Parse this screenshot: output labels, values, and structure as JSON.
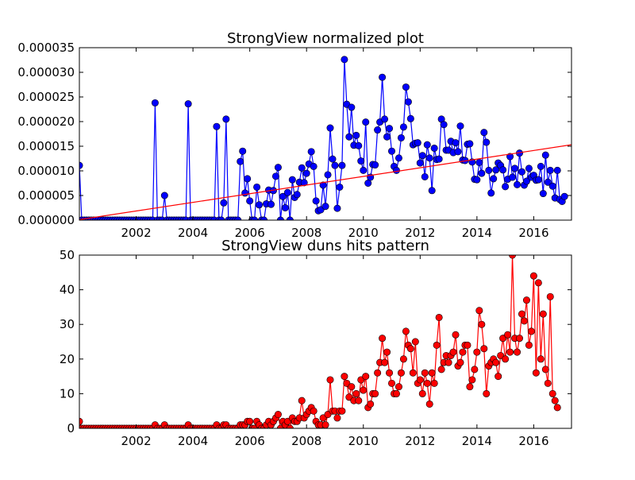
{
  "figure": {
    "background": "#ffffff"
  },
  "chart_data": [
    {
      "type": "line",
      "title": "StrongView normalized plot",
      "xlabel": "",
      "ylabel": "",
      "xlim": [
        2000.0,
        2017.33
      ],
      "ylim": [
        0,
        3.5e-05
      ],
      "xticks": [
        2002,
        2004,
        2006,
        2008,
        2010,
        2012,
        2014,
        2016
      ],
      "yticks": [
        {
          "value": 0,
          "label": "0.000000"
        },
        {
          "value": 5e-06,
          "label": "0.000005"
        },
        {
          "value": 1e-05,
          "label": "0.000010"
        },
        {
          "value": 1.5e-05,
          "label": "0.000015"
        },
        {
          "value": 2e-05,
          "label": "0.000020"
        },
        {
          "value": 2.5e-05,
          "label": "0.000025"
        },
        {
          "value": 3e-05,
          "label": "0.000030"
        },
        {
          "value": 3.5e-05,
          "label": "0.000035"
        }
      ],
      "grid": false,
      "series": [
        {
          "color": "#0000ff",
          "marker": "circle",
          "x_start": 2000.0,
          "x_step": 0.08333,
          "values": [
            1.11e-05,
            0,
            0,
            0,
            0,
            0,
            0,
            0,
            0,
            0,
            0,
            0,
            0,
            0,
            0,
            0,
            0,
            0,
            0,
            0,
            0,
            0,
            0,
            0,
            0,
            0,
            0,
            0,
            0,
            0,
            0,
            0,
            2.38e-05,
            0,
            0,
            0,
            5e-06,
            0,
            0,
            0,
            0,
            0,
            0,
            0,
            0,
            0,
            2.36e-05,
            0,
            0,
            0,
            0,
            0,
            0,
            0,
            0,
            0,
            0,
            0,
            1.9e-05,
            0,
            0,
            3.5e-06,
            2.05e-05,
            0,
            0,
            0,
            0,
            0,
            1.19e-05,
            1.4e-05,
            5.5e-06,
            8.4e-06,
            3.9e-06,
            0,
            0,
            6.7e-06,
            3.1e-06,
            0,
            0,
            3.3e-06,
            6.1e-06,
            3.2e-06,
            6e-06,
            8.9e-06,
            1.07e-05,
            0,
            4.8e-06,
            2.5e-06,
            5.6e-06,
            0,
            8.2e-06,
            4.6e-06,
            5.2e-06,
            7.7e-06,
            1.06e-05,
            7.6e-06,
            9.5e-06,
            1.14e-05,
            1.39e-05,
            1.09e-05,
            3.9e-06,
            1.9e-06,
            2.1e-06,
            7.1e-06,
            2.8e-06,
            9.2e-06,
            1.87e-05,
            1.24e-05,
            1.11e-05,
            2.4e-06,
            6.7e-06,
            1.11e-05,
            3.26e-05,
            2.35e-05,
            1.69e-05,
            2.29e-05,
            1.52e-05,
            1.72e-05,
            1.51e-05,
            1.2e-05,
            1.01e-05,
            1.99e-05,
            7.5e-06,
            8.7e-06,
            1.13e-05,
            1.12e-05,
            1.83e-05,
            1.99e-05,
            2.9e-05,
            2.05e-05,
            1.69e-05,
            1.86e-05,
            1.4e-05,
            1.09e-05,
            1.01e-05,
            1.26e-05,
            1.67e-05,
            1.89e-05,
            2.7e-05,
            2.4e-05,
            2.06e-05,
            1.53e-05,
            1.56e-05,
            1.57e-05,
            1.16e-05,
            1.31e-05,
            8.8e-06,
            1.53e-05,
            1.26e-05,
            6e-06,
            1.46e-05,
            1.23e-05,
            1.24e-05,
            2.05e-05,
            1.94e-05,
            1.42e-05,
            1.42e-05,
            1.6e-05,
            1.37e-05,
            1.57e-05,
            1.39e-05,
            1.91e-05,
            1.22e-05,
            1.21e-05,
            1.54e-05,
            1.55e-05,
            1.18e-05,
            8.3e-06,
            8.2e-06,
            1.17e-05,
            9.5e-06,
            1.78e-05,
            1.58e-05,
            1.01e-05,
            5.5e-06,
            8.4e-06,
            1.02e-05,
            1.16e-05,
            1.11e-05,
            1.02e-05,
            6.8e-06,
            8.3e-06,
            1.29e-05,
            8.7e-06,
            1.05e-05,
            7.2e-06,
            1.36e-05,
            9.8e-06,
            7.1e-06,
            7.9e-06,
            1.05e-05,
            8.7e-06,
            9.1e-06,
            8.1e-06,
            8.2e-06,
            1.09e-05,
            5.4e-06,
            1.32e-05,
            7.7e-06,
            1.01e-05,
            6.9e-06,
            4.5e-06,
            1.01e-05,
            4.2e-06,
            3.8e-06,
            4.8e-06
          ]
        },
        {
          "color": "#ff0000",
          "marker": "none",
          "x": [
            2000.0,
            2017.33
          ],
          "values": [
            1e-07,
            1.53e-05
          ]
        }
      ]
    },
    {
      "type": "line",
      "title": "StrongView duns hits pattern",
      "xlabel": "",
      "ylabel": "",
      "xlim": [
        2000.0,
        2017.33
      ],
      "ylim": [
        0,
        50
      ],
      "xticks": [
        2002,
        2004,
        2006,
        2008,
        2010,
        2012,
        2014,
        2016
      ],
      "yticks": [
        {
          "value": 0,
          "label": "0"
        },
        {
          "value": 10,
          "label": "10"
        },
        {
          "value": 20,
          "label": "20"
        },
        {
          "value": 30,
          "label": "30"
        },
        {
          "value": 40,
          "label": "40"
        },
        {
          "value": 50,
          "label": "50"
        }
      ],
      "grid": false,
      "series": [
        {
          "color": "#ff0000",
          "marker": "circle",
          "x_start": 2000.0,
          "x_step": 0.08333,
          "values": [
            2,
            0,
            0,
            0,
            0,
            0,
            0,
            0,
            0,
            0,
            0,
            0,
            0,
            0,
            0,
            0,
            0,
            0,
            0,
            0,
            0,
            0,
            0,
            0,
            0,
            0,
            0,
            0,
            0,
            0,
            0,
            0,
            1,
            0,
            0,
            0,
            1,
            0,
            0,
            0,
            0,
            0,
            0,
            0,
            0,
            0,
            1,
            0,
            0,
            0,
            0,
            0,
            0,
            0,
            0,
            0,
            0,
            0,
            1,
            0,
            0,
            1,
            1,
            0,
            0,
            0,
            0,
            0,
            1,
            1,
            1,
            2,
            2,
            0,
            0,
            2,
            1,
            0,
            0,
            1,
            2,
            1,
            2,
            3,
            4,
            0,
            2,
            1,
            2,
            0,
            3,
            2,
            2,
            3,
            8,
            3,
            4,
            5,
            6,
            5,
            2,
            1,
            1,
            3,
            1,
            4,
            14,
            5,
            5,
            3,
            5,
            5,
            15,
            13,
            9,
            12,
            8,
            10,
            8,
            14,
            11,
            15,
            6,
            7,
            10,
            10,
            16,
            19,
            26,
            19,
            22,
            16,
            13,
            10,
            10,
            12,
            16,
            20,
            28,
            24,
            23,
            16,
            25,
            13,
            14,
            10,
            16,
            13,
            7,
            16,
            13,
            24,
            32,
            17,
            19,
            21,
            19,
            21,
            22,
            27,
            18,
            19,
            22,
            24,
            24,
            12,
            14,
            17,
            22,
            34,
            30,
            23,
            10,
            18,
            19,
            20,
            19,
            15,
            21,
            26,
            20,
            27,
            22,
            50,
            26,
            22,
            26,
            33,
            31,
            37,
            24,
            28,
            44,
            16,
            42,
            20,
            33,
            17,
            13,
            38,
            10,
            8,
            6
          ]
        }
      ]
    }
  ]
}
